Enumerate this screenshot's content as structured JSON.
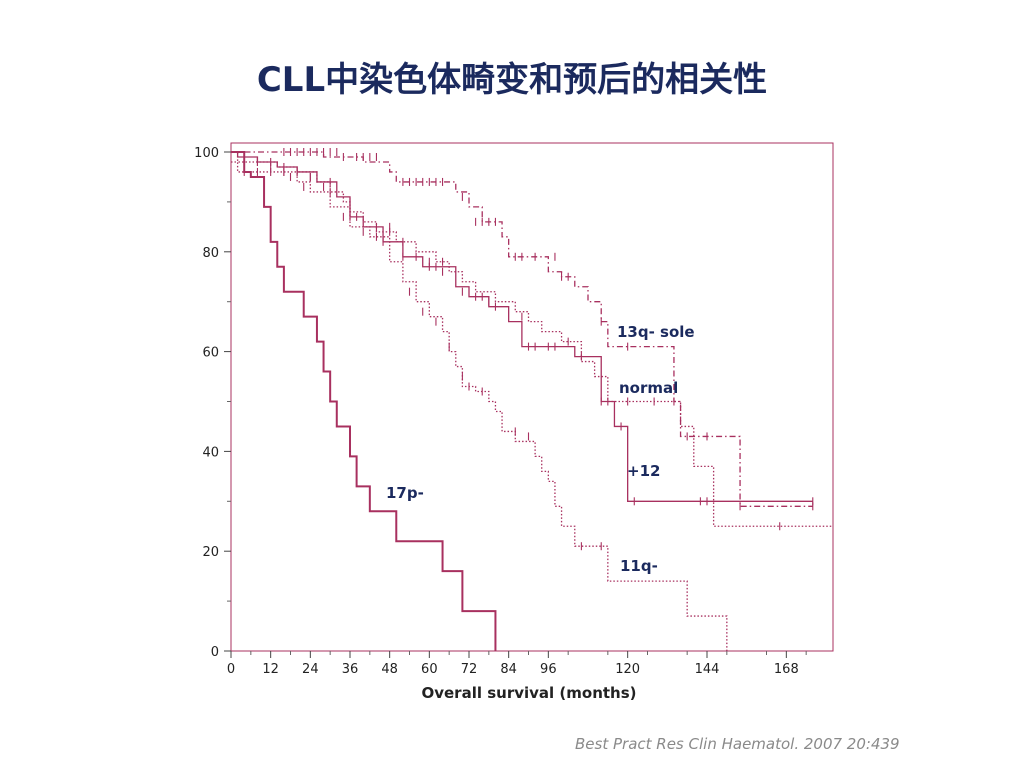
{
  "slide": {
    "title": "CLL中染色体畸变和预后的相关性",
    "citation": "Best Pract Res Clin Haematol. 2007 20:439"
  },
  "colors": {
    "curve": "#a8305f",
    "frame": "#a8305f",
    "title": "#1b2a5e",
    "labels": "#1b2a5e"
  },
  "chart_data": {
    "type": "line",
    "subtype": "kaplan-meier step curves",
    "xlabel": "Overall survival (months)",
    "ylabel": "",
    "xlim": [
      0,
      180
    ],
    "ylim": [
      0,
      100
    ],
    "x_ticks": [
      0,
      12,
      24,
      36,
      48,
      60,
      72,
      84,
      96,
      120,
      144,
      168
    ],
    "y_ticks": [
      0,
      20,
      40,
      60,
      80,
      100
    ],
    "grid": false,
    "legend": "inline labels",
    "series": [
      {
        "name": "13q- sole",
        "dash": "dashdot",
        "steps": [
          [
            0,
            100
          ],
          [
            28,
            99
          ],
          [
            40,
            98
          ],
          [
            48,
            96
          ],
          [
            50,
            94
          ],
          [
            66,
            94
          ],
          [
            68,
            92
          ],
          [
            72,
            89
          ],
          [
            76,
            86
          ],
          [
            82,
            83
          ],
          [
            84,
            79
          ],
          [
            92,
            79
          ],
          [
            96,
            76
          ],
          [
            100,
            75
          ],
          [
            104,
            73
          ],
          [
            108,
            70
          ],
          [
            112,
            66
          ],
          [
            114,
            61
          ],
          [
            132,
            61
          ],
          [
            134,
            50
          ],
          [
            136,
            43
          ],
          [
            152,
            43
          ],
          [
            154,
            29
          ],
          [
            176,
            29
          ]
        ],
        "censor": [
          [
            16,
            100
          ],
          [
            18,
            100
          ],
          [
            20,
            100
          ],
          [
            22,
            100
          ],
          [
            24,
            100
          ],
          [
            26,
            100
          ],
          [
            28,
            100
          ],
          [
            30,
            100
          ],
          [
            32,
            100
          ],
          [
            34,
            99
          ],
          [
            38,
            99
          ],
          [
            40,
            99
          ],
          [
            42,
            99
          ],
          [
            44,
            99
          ],
          [
            52,
            94
          ],
          [
            54,
            94
          ],
          [
            56,
            94
          ],
          [
            58,
            94
          ],
          [
            60,
            94
          ],
          [
            62,
            94
          ],
          [
            64,
            94
          ],
          [
            70,
            91
          ],
          [
            74,
            86
          ],
          [
            76,
            86
          ],
          [
            78,
            86
          ],
          [
            80,
            86
          ],
          [
            86,
            79
          ],
          [
            88,
            79
          ],
          [
            92,
            79
          ],
          [
            98,
            79
          ],
          [
            100,
            75
          ],
          [
            102,
            75
          ],
          [
            112,
            66
          ],
          [
            120,
            61
          ],
          [
            138,
            43
          ],
          [
            144,
            43
          ],
          [
            154,
            29
          ],
          [
            176,
            29
          ]
        ]
      },
      {
        "name": "normal",
        "dash": "dotted",
        "steps": [
          [
            0,
            100
          ],
          [
            2,
            98
          ],
          [
            14,
            97
          ],
          [
            20,
            96
          ],
          [
            26,
            94
          ],
          [
            30,
            92
          ],
          [
            34,
            90
          ],
          [
            36,
            88
          ],
          [
            40,
            86
          ],
          [
            44,
            84
          ],
          [
            50,
            82
          ],
          [
            56,
            80
          ],
          [
            62,
            78
          ],
          [
            66,
            76
          ],
          [
            70,
            74
          ],
          [
            74,
            72
          ],
          [
            80,
            70
          ],
          [
            86,
            68
          ],
          [
            90,
            66
          ],
          [
            94,
            64
          ],
          [
            100,
            62
          ],
          [
            106,
            58
          ],
          [
            110,
            55
          ],
          [
            114,
            50
          ],
          [
            130,
            50
          ],
          [
            136,
            45
          ],
          [
            140,
            37
          ],
          [
            146,
            25
          ],
          [
            182,
            25
          ]
        ],
        "censor": [
          [
            8,
            98
          ],
          [
            12,
            97
          ],
          [
            16,
            96
          ],
          [
            20,
            96
          ],
          [
            24,
            95
          ],
          [
            30,
            94
          ],
          [
            36,
            90
          ],
          [
            48,
            84
          ],
          [
            52,
            82
          ],
          [
            60,
            78
          ],
          [
            64,
            78
          ],
          [
            76,
            71
          ],
          [
            88,
            67
          ],
          [
            102,
            62
          ],
          [
            120,
            50
          ],
          [
            128,
            50
          ],
          [
            134,
            50
          ],
          [
            166,
            25
          ]
        ]
      },
      {
        "name": "+12",
        "dash": "solid",
        "steps": [
          [
            0,
            100
          ],
          [
            2,
            99
          ],
          [
            8,
            98
          ],
          [
            14,
            97
          ],
          [
            20,
            96
          ],
          [
            26,
            94
          ],
          [
            32,
            91
          ],
          [
            36,
            87
          ],
          [
            40,
            85
          ],
          [
            44,
            85
          ],
          [
            46,
            82
          ],
          [
            52,
            79
          ],
          [
            58,
            77
          ],
          [
            64,
            77
          ],
          [
            68,
            73
          ],
          [
            72,
            71
          ],
          [
            78,
            69
          ],
          [
            84,
            66
          ],
          [
            88,
            61
          ],
          [
            102,
            61
          ],
          [
            104,
            59
          ],
          [
            112,
            50
          ],
          [
            116,
            45
          ],
          [
            120,
            30
          ],
          [
            176,
            30
          ]
        ],
        "censor": [
          [
            4,
            99
          ],
          [
            8,
            98
          ],
          [
            12,
            98
          ],
          [
            16,
            97
          ],
          [
            20,
            96
          ],
          [
            24,
            95
          ],
          [
            28,
            93
          ],
          [
            30,
            92
          ],
          [
            36,
            87
          ],
          [
            38,
            87
          ],
          [
            44,
            85
          ],
          [
            48,
            85
          ],
          [
            52,
            79
          ],
          [
            56,
            79
          ],
          [
            60,
            77
          ],
          [
            62,
            77
          ],
          [
            64,
            76
          ],
          [
            70,
            72
          ],
          [
            74,
            71
          ],
          [
            78,
            70
          ],
          [
            80,
            69
          ],
          [
            90,
            61
          ],
          [
            92,
            61
          ],
          [
            96,
            61
          ],
          [
            98,
            61
          ],
          [
            106,
            59
          ],
          [
            112,
            50
          ],
          [
            114,
            50
          ],
          [
            118,
            45
          ],
          [
            122,
            30
          ],
          [
            142,
            30
          ],
          [
            144,
            30
          ],
          [
            176,
            30
          ]
        ]
      },
      {
        "name": "11q-",
        "dash": "dotted",
        "steps": [
          [
            0,
            98
          ],
          [
            2,
            96
          ],
          [
            14,
            96
          ],
          [
            20,
            94
          ],
          [
            24,
            92
          ],
          [
            30,
            89
          ],
          [
            36,
            85
          ],
          [
            42,
            83
          ],
          [
            48,
            78
          ],
          [
            52,
            74
          ],
          [
            56,
            70
          ],
          [
            60,
            67
          ],
          [
            64,
            64
          ],
          [
            66,
            60
          ],
          [
            68,
            57
          ],
          [
            70,
            53
          ],
          [
            74,
            52
          ],
          [
            78,
            50
          ],
          [
            80,
            48
          ],
          [
            82,
            44
          ],
          [
            86,
            42
          ],
          [
            92,
            39
          ],
          [
            94,
            36
          ],
          [
            96,
            34
          ],
          [
            98,
            29
          ],
          [
            100,
            25
          ],
          [
            104,
            21
          ],
          [
            114,
            14
          ],
          [
            134,
            14
          ],
          [
            138,
            7
          ],
          [
            148,
            7
          ],
          [
            150,
            0
          ]
        ],
        "censor": [
          [
            4,
            96
          ],
          [
            8,
            96
          ],
          [
            12,
            96
          ],
          [
            16,
            96
          ],
          [
            18,
            95
          ],
          [
            22,
            93
          ],
          [
            34,
            87
          ],
          [
            40,
            84
          ],
          [
            44,
            83
          ],
          [
            46,
            82
          ],
          [
            54,
            72
          ],
          [
            58,
            68
          ],
          [
            62,
            66
          ],
          [
            66,
            61
          ],
          [
            70,
            55
          ],
          [
            72,
            53
          ],
          [
            76,
            52
          ],
          [
            86,
            44
          ],
          [
            90,
            43
          ],
          [
            106,
            21
          ],
          [
            112,
            21
          ]
        ]
      },
      {
        "name": "17p-",
        "dash": "solid",
        "steps": [
          [
            0,
            100
          ],
          [
            4,
            96
          ],
          [
            6,
            95
          ],
          [
            10,
            89
          ],
          [
            12,
            82
          ],
          [
            14,
            77
          ],
          [
            16,
            72
          ],
          [
            22,
            67
          ],
          [
            26,
            62
          ],
          [
            28,
            56
          ],
          [
            30,
            50
          ],
          [
            32,
            45
          ],
          [
            36,
            39
          ],
          [
            38,
            33
          ],
          [
            42,
            28
          ],
          [
            50,
            22
          ],
          [
            64,
            16
          ],
          [
            70,
            8
          ],
          [
            80,
            0
          ]
        ]
      }
    ],
    "annotations": [
      {
        "text": "13q- sole",
        "series": "13q- sole"
      },
      {
        "text": "normal",
        "series": "normal"
      },
      {
        "text": "+12",
        "series": "+12"
      },
      {
        "text": "17p-",
        "series": "17p-"
      },
      {
        "text": "11q-",
        "series": "11q-"
      }
    ]
  }
}
